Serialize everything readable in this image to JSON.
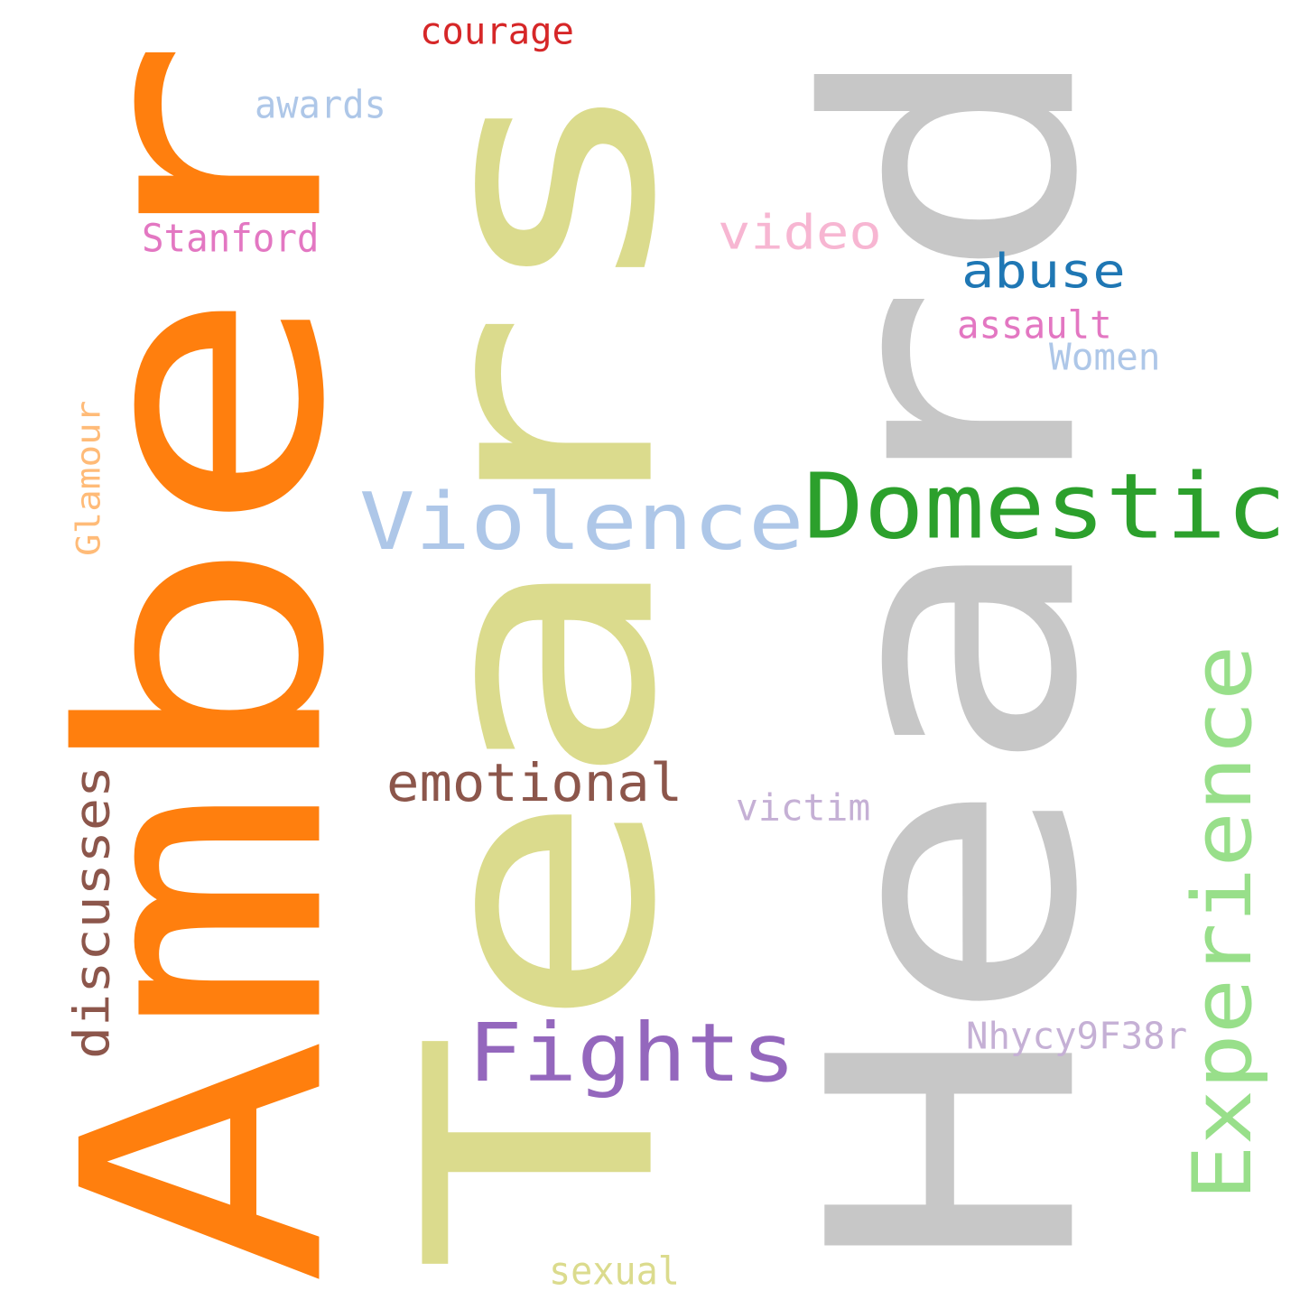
{
  "words": [
    {
      "text": "Amber",
      "color": "#ff7f0e",
      "rotated": true
    },
    {
      "text": "Tears",
      "color": "#dbdb8d",
      "rotated": true
    },
    {
      "text": "Heard",
      "color": "#c7c7c7",
      "rotated": true
    },
    {
      "text": "Domestic",
      "color": "#2ca02c",
      "rotated": false
    },
    {
      "text": "Violence",
      "color": "#aec7e8",
      "rotated": false
    },
    {
      "text": "Fights",
      "color": "#9467bd",
      "rotated": false
    },
    {
      "text": "Experience",
      "color": "#98df8a",
      "rotated": true
    },
    {
      "text": "discusses",
      "color": "#8c564b",
      "rotated": true
    },
    {
      "text": "emotional",
      "color": "#8c564b",
      "rotated": false
    },
    {
      "text": "abuse",
      "color": "#1f77b4",
      "rotated": false
    },
    {
      "text": "video",
      "color": "#f7b6d2",
      "rotated": false
    },
    {
      "text": "assault",
      "color": "#e377c2",
      "rotated": false
    },
    {
      "text": "Women",
      "color": "#aec7e8",
      "rotated": false
    },
    {
      "text": "victim",
      "color": "#c5b0d5",
      "rotated": false
    },
    {
      "text": "Nhycy9F38r",
      "color": "#c5b0d5",
      "rotated": false
    },
    {
      "text": "courage",
      "color": "#d62728",
      "rotated": false
    },
    {
      "text": "awards",
      "color": "#aec7e8",
      "rotated": false
    },
    {
      "text": "Stanford",
      "color": "#e377c2",
      "rotated": false
    },
    {
      "text": "Glamour",
      "color": "#ffbb78",
      "rotated": true
    },
    {
      "text": "sexual",
      "color": "#dbdb8d",
      "rotated": false
    }
  ]
}
